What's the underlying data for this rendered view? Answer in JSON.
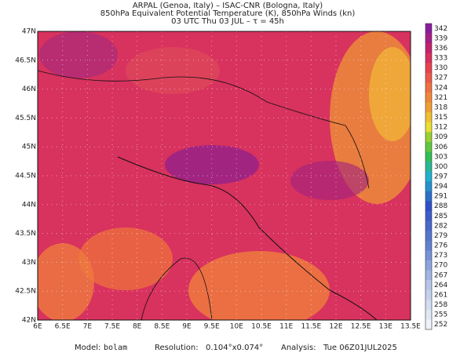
{
  "header": {
    "lines": [
      "ARPAL (Genoa, Italy)  –  ISAC-CNR (Bologna, Italy)",
      "850hPa Equivalent Potential Temperature (K), 850hPa Winds (kn)",
      "03 UTC Thu 03 JUL  –  τ = 45h"
    ]
  },
  "map": {
    "lon_ticks": [
      {
        "value": 6,
        "label": "6E"
      },
      {
        "value": 6.5,
        "label": "6.5E"
      },
      {
        "value": 7,
        "label": "7E"
      },
      {
        "value": 7.5,
        "label": "7.5E"
      },
      {
        "value": 8,
        "label": "8E"
      },
      {
        "value": 8.5,
        "label": "8.5E"
      },
      {
        "value": 9,
        "label": "9E"
      },
      {
        "value": 9.5,
        "label": "9.5E"
      },
      {
        "value": 10,
        "label": "10E"
      },
      {
        "value": 10.5,
        "label": "10.5E"
      },
      {
        "value": 11,
        "label": "11E"
      },
      {
        "value": 11.5,
        "label": "11.5E"
      },
      {
        "value": 12,
        "label": "12E"
      },
      {
        "value": 12.5,
        "label": "12.5E"
      },
      {
        "value": 13,
        "label": "13E"
      },
      {
        "value": 13.5,
        "label": "13.5E"
      }
    ],
    "lat_ticks": [
      {
        "value": 42,
        "label": "42N"
      },
      {
        "value": 42.5,
        "label": "42.5N"
      },
      {
        "value": 43,
        "label": "43N"
      },
      {
        "value": 43.5,
        "label": "43.5N"
      },
      {
        "value": 44,
        "label": "44N"
      },
      {
        "value": 44.5,
        "label": "44.5N"
      },
      {
        "value": 45,
        "label": "45N"
      },
      {
        "value": 45.5,
        "label": "45.5N"
      },
      {
        "value": 46,
        "label": "46N"
      },
      {
        "value": 46.5,
        "label": "46.5N"
      },
      {
        "value": 47,
        "label": "47N"
      }
    ]
  },
  "colorbar": {
    "levels": [
      342,
      339,
      336,
      333,
      330,
      327,
      324,
      321,
      318,
      315,
      312,
      309,
      306,
      303,
      300,
      297,
      294,
      291,
      288,
      285,
      282,
      279,
      276,
      273,
      270,
      267,
      264,
      261,
      258,
      255,
      252
    ]
  },
  "footer": {
    "model_label": "Model:",
    "model": "bolam",
    "resolution_label": "Resolution:",
    "resolution": "0.104°x0.074°",
    "analysis_label": "Analysis:",
    "analysis": "Tue 06Z01JUL2025"
  }
}
